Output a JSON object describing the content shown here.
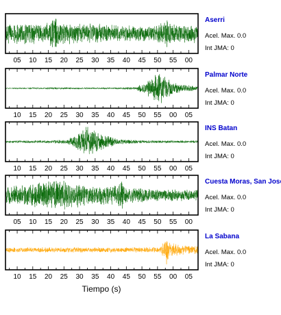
{
  "xlabel": "Tiempo (s)",
  "chart_data": [
    {
      "type": "line",
      "title": "Aserri",
      "info": [
        "Acel. Max. 0.0",
        "Int JMA: 0"
      ],
      "color": "#006400",
      "xticks_top": false,
      "xtick_labels": [
        "05",
        "10",
        "15",
        "20",
        "25",
        "30",
        "35",
        "40",
        "45",
        "50",
        "55",
        "00"
      ],
      "envelope": [
        [
          0,
          0.55
        ],
        [
          0.12,
          0.6
        ],
        [
          0.2,
          0.5
        ],
        [
          0.26,
          0.95
        ],
        [
          0.3,
          0.6
        ],
        [
          0.5,
          0.55
        ],
        [
          0.62,
          0.45
        ],
        [
          0.8,
          0.5
        ],
        [
          0.84,
          0.9
        ],
        [
          0.88,
          0.6
        ],
        [
          1,
          0.55
        ]
      ]
    },
    {
      "type": "line",
      "title": "Palmar Norte",
      "info": [
        "Acel. Max. 0.0",
        "Int JMA: 0"
      ],
      "color": "#006400",
      "xticks_top": true,
      "xtick_labels": [
        "10",
        "15",
        "20",
        "25",
        "30",
        "35",
        "40",
        "45",
        "50",
        "55",
        "00",
        "05"
      ],
      "envelope": [
        [
          0,
          0.04
        ],
        [
          0.25,
          0.06
        ],
        [
          0.55,
          0.05
        ],
        [
          0.68,
          0.08
        ],
        [
          0.72,
          0.35
        ],
        [
          0.77,
          0.8
        ],
        [
          0.8,
          1.0
        ],
        [
          0.84,
          0.55
        ],
        [
          0.9,
          0.25
        ],
        [
          1,
          0.1
        ]
      ]
    },
    {
      "type": "line",
      "title": "INS Batan",
      "info": [
        "Acel. Max. 0.0",
        "Int JMA: 0"
      ],
      "color": "#006400",
      "xticks_top": true,
      "xtick_labels": [
        "10",
        "15",
        "20",
        "25",
        "30",
        "35",
        "40",
        "45",
        "50",
        "55",
        "00",
        "05"
      ],
      "envelope": [
        [
          0,
          0.07
        ],
        [
          0.2,
          0.08
        ],
        [
          0.32,
          0.12
        ],
        [
          0.38,
          0.55
        ],
        [
          0.42,
          1.0
        ],
        [
          0.47,
          0.6
        ],
        [
          0.52,
          0.45
        ],
        [
          0.58,
          0.18
        ],
        [
          0.7,
          0.08
        ],
        [
          1,
          0.07
        ]
      ]
    },
    {
      "type": "line",
      "title": "Cuesta Moras, San Jose",
      "info": [
        "Acel. Max. 0.0",
        "Int JMA: 0"
      ],
      "color": "#006400",
      "xticks_top": true,
      "xtick_labels": [
        "05",
        "10",
        "15",
        "20",
        "25",
        "30",
        "35",
        "40",
        "45",
        "50",
        "55",
        "00"
      ],
      "envelope": [
        [
          0,
          0.45
        ],
        [
          0.18,
          0.75
        ],
        [
          0.3,
          0.85
        ],
        [
          0.42,
          0.6
        ],
        [
          0.58,
          0.55
        ],
        [
          0.6,
          0.95
        ],
        [
          0.62,
          0.45
        ],
        [
          0.8,
          0.35
        ],
        [
          1,
          0.3
        ]
      ]
    },
    {
      "type": "line",
      "title": "La Sabana",
      "info": [
        "Acel. Max. 0.0",
        "Int JMA: 0"
      ],
      "color": "#ffa500",
      "xticks_top": true,
      "xtick_labels": [
        "10",
        "15",
        "20",
        "25",
        "30",
        "35",
        "40",
        "45",
        "50",
        "55",
        "00",
        "05"
      ],
      "envelope": [
        [
          0,
          0.14
        ],
        [
          0.4,
          0.15
        ],
        [
          0.8,
          0.15
        ],
        [
          0.83,
          0.55
        ],
        [
          0.835,
          1.0
        ],
        [
          0.85,
          0.45
        ],
        [
          0.9,
          0.3
        ],
        [
          1,
          0.25
        ]
      ]
    }
  ]
}
